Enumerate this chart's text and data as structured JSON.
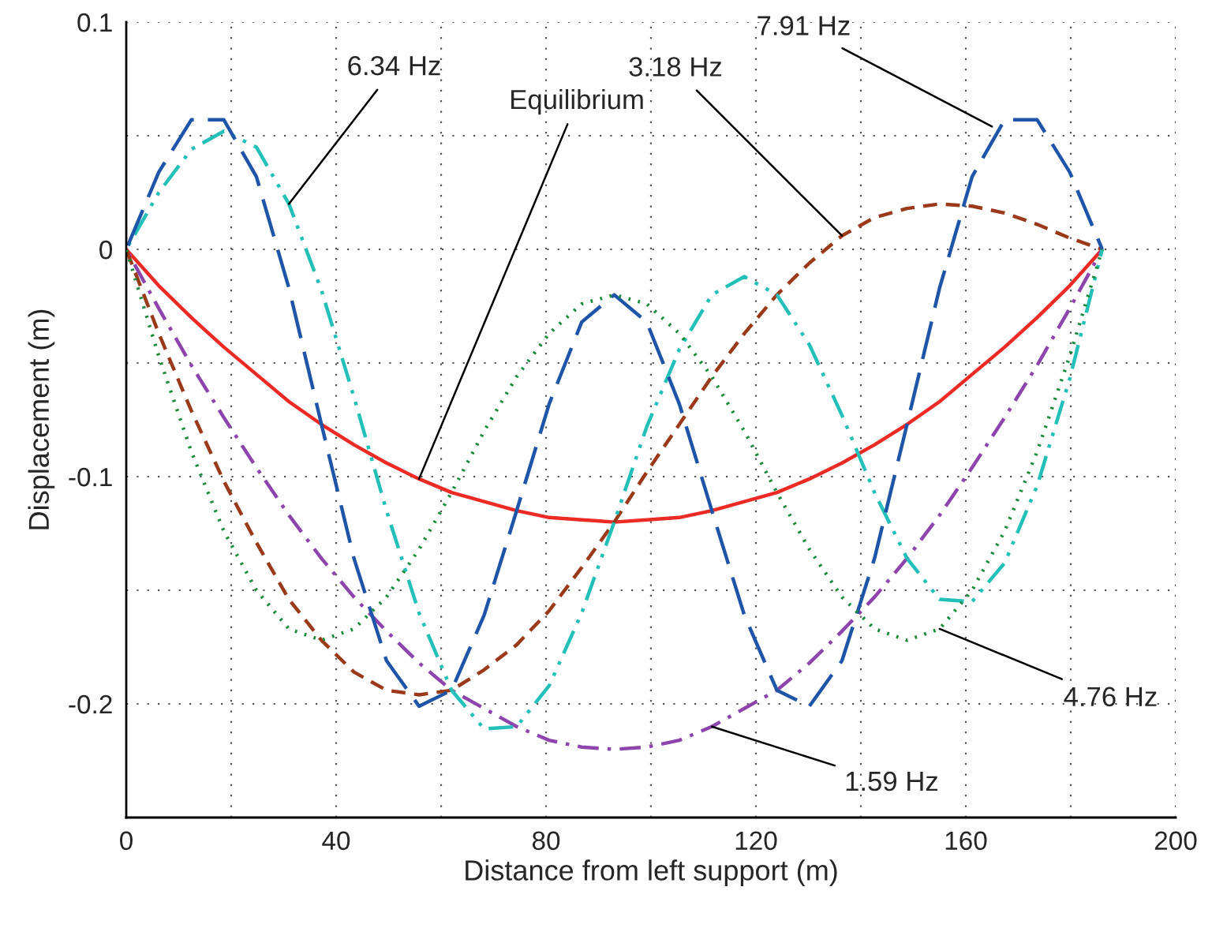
{
  "chart_data": {
    "type": "line",
    "xlabel": "Distance from left support (m)",
    "ylabel": "Displacement (m)",
    "x": [
      0,
      6.2,
      12.4,
      18.6,
      24.8,
      31,
      37.2,
      43.4,
      49.6,
      55.8,
      62,
      68.2,
      74.4,
      80.6,
      86.8,
      93,
      99.2,
      105.4,
      111.6,
      117.8,
      124,
      130.2,
      136.4,
      142.6,
      148.8,
      155,
      161.2,
      167.4,
      173.6,
      179.8,
      186
    ],
    "series": [
      {
        "color": "#ee2a24",
        "line_style": "solid",
        "values": [
          0,
          -0.016,
          -0.03,
          -0.043,
          -0.055,
          -0.067,
          -0.077,
          -0.086,
          -0.094,
          -0.101,
          -0.107,
          -0.111,
          -0.115,
          -0.118,
          -0.119,
          -0.12,
          -0.119,
          -0.118,
          -0.115,
          -0.111,
          -0.107,
          -0.101,
          -0.094,
          -0.086,
          -0.077,
          -0.067,
          -0.055,
          -0.043,
          -0.03,
          -0.016,
          0
        ]
      },
      {
        "color": "#8e44ad",
        "line_style": "dashdot",
        "values": [
          0,
          -0.026,
          -0.051,
          -0.074,
          -0.096,
          -0.117,
          -0.136,
          -0.153,
          -0.168,
          -0.182,
          -0.194,
          -0.202,
          -0.21,
          -0.216,
          -0.219,
          -0.22,
          -0.219,
          -0.216,
          -0.21,
          -0.202,
          -0.194,
          -0.182,
          -0.168,
          -0.153,
          -0.136,
          -0.117,
          -0.096,
          -0.074,
          -0.051,
          -0.026,
          0
        ]
      },
      {
        "color": "#9b3a1a",
        "line_style": "dashed",
        "values": [
          0,
          -0.037,
          -0.071,
          -0.102,
          -0.129,
          -0.154,
          -0.172,
          -0.186,
          -0.194,
          -0.196,
          -0.194,
          -0.185,
          -0.174,
          -0.159,
          -0.14,
          -0.12,
          -0.098,
          -0.077,
          -0.056,
          -0.037,
          -0.02,
          -0.006,
          0.006,
          0.014,
          0.018,
          0.02,
          0.019,
          0.016,
          0.011,
          0.005,
          0
        ]
      },
      {
        "color": "#1a8a3c",
        "line_style": "dotted",
        "values": [
          0,
          -0.047,
          -0.089,
          -0.124,
          -0.15,
          -0.167,
          -0.172,
          -0.167,
          -0.153,
          -0.132,
          -0.107,
          -0.08,
          -0.056,
          -0.037,
          -0.024,
          -0.02,
          -0.024,
          -0.037,
          -0.056,
          -0.08,
          -0.107,
          -0.132,
          -0.153,
          -0.167,
          -0.172,
          -0.167,
          -0.15,
          -0.124,
          -0.089,
          -0.047,
          0
        ]
      },
      {
        "color": "#22c0b8",
        "line_style": "dashdotdot",
        "values": [
          0,
          0.025,
          0.044,
          0.052,
          0.045,
          0.02,
          -0.018,
          -0.065,
          -0.115,
          -0.16,
          -0.194,
          -0.211,
          -0.21,
          -0.192,
          -0.16,
          -0.12,
          -0.078,
          -0.044,
          -0.02,
          -0.012,
          -0.02,
          -0.042,
          -0.073,
          -0.107,
          -0.136,
          -0.154,
          -0.155,
          -0.138,
          -0.104,
          -0.057,
          0
        ]
      },
      {
        "color": "#1f55a8",
        "line_style": "longdash",
        "values": [
          0,
          0.034,
          0.057,
          0.057,
          0.032,
          -0.017,
          -0.077,
          -0.136,
          -0.181,
          -0.201,
          -0.194,
          -0.161,
          -0.115,
          -0.068,
          -0.032,
          -0.02,
          -0.032,
          -0.068,
          -0.115,
          -0.161,
          -0.194,
          -0.201,
          -0.181,
          -0.136,
          -0.077,
          -0.017,
          0.032,
          0.057,
          0.057,
          0.034,
          0
        ]
      }
    ],
    "xlim": [
      0,
      200
    ],
    "ylim": [
      -0.25,
      0.1
    ],
    "xticks": [
      0,
      {
        "value": 20,
        "label": null
      },
      40,
      {
        "value": 60,
        "label": null
      },
      80,
      {
        "value": 100,
        "label": null
      },
      120,
      {
        "value": 140,
        "label": null
      },
      160,
      {
        "value": 180,
        "label": null
      },
      200
    ],
    "yticks": [
      {
        "value": -0.25,
        "label": null
      },
      {
        "value": -0.2,
        "label": "-0.2"
      },
      {
        "value": -0.15,
        "label": null
      },
      {
        "value": -0.1,
        "label": "-0.1"
      },
      {
        "value": -0.05,
        "label": null
      },
      0,
      {
        "value": 0.05,
        "label": null
      },
      0.1
    ],
    "grid": true,
    "annotations": [
      {
        "text": "6.34 Hz",
        "x": 31,
        "y": 0.02
      },
      {
        "text": "Equilibrium",
        "x": 55.8,
        "y": -0.101
      },
      {
        "text": "3.18 Hz",
        "x": 136.4,
        "y": 0.006
      },
      {
        "text": "7.91 Hz",
        "x": 165,
        "y": 0.054
      },
      {
        "text": "4.76 Hz",
        "x": 155,
        "y": -0.167
      },
      {
        "text": "1.59 Hz",
        "x": 111.6,
        "y": -0.21
      }
    ]
  }
}
